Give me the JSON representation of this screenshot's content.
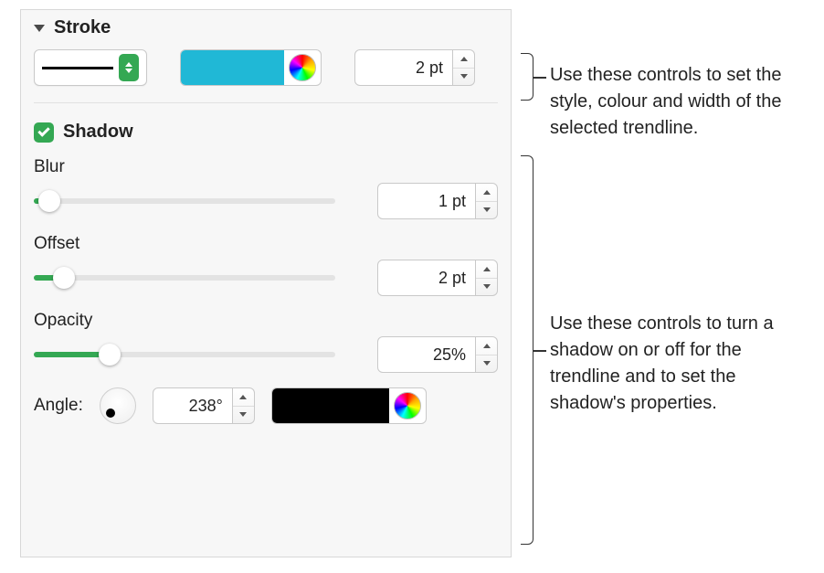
{
  "stroke": {
    "header": "Stroke",
    "width_value": "2 pt",
    "color": "#20b8d6",
    "callout": "Use these controls to set the style, colour and width of the selected trendline."
  },
  "shadow": {
    "label": "Shadow",
    "checked": true,
    "blur": {
      "label": "Blur",
      "value": "1 pt",
      "percent": 5
    },
    "offset": {
      "label": "Offset",
      "value": "2 pt",
      "percent": 10
    },
    "opacity": {
      "label": "Opacity",
      "value": "25%",
      "percent": 25
    },
    "angle": {
      "label": "Angle:",
      "value": "238°"
    },
    "color": "#000000",
    "callout": "Use these controls to turn a shadow on or off for the trendline and to set the shadow's properties."
  },
  "colors": {
    "accent": "#34a853"
  }
}
